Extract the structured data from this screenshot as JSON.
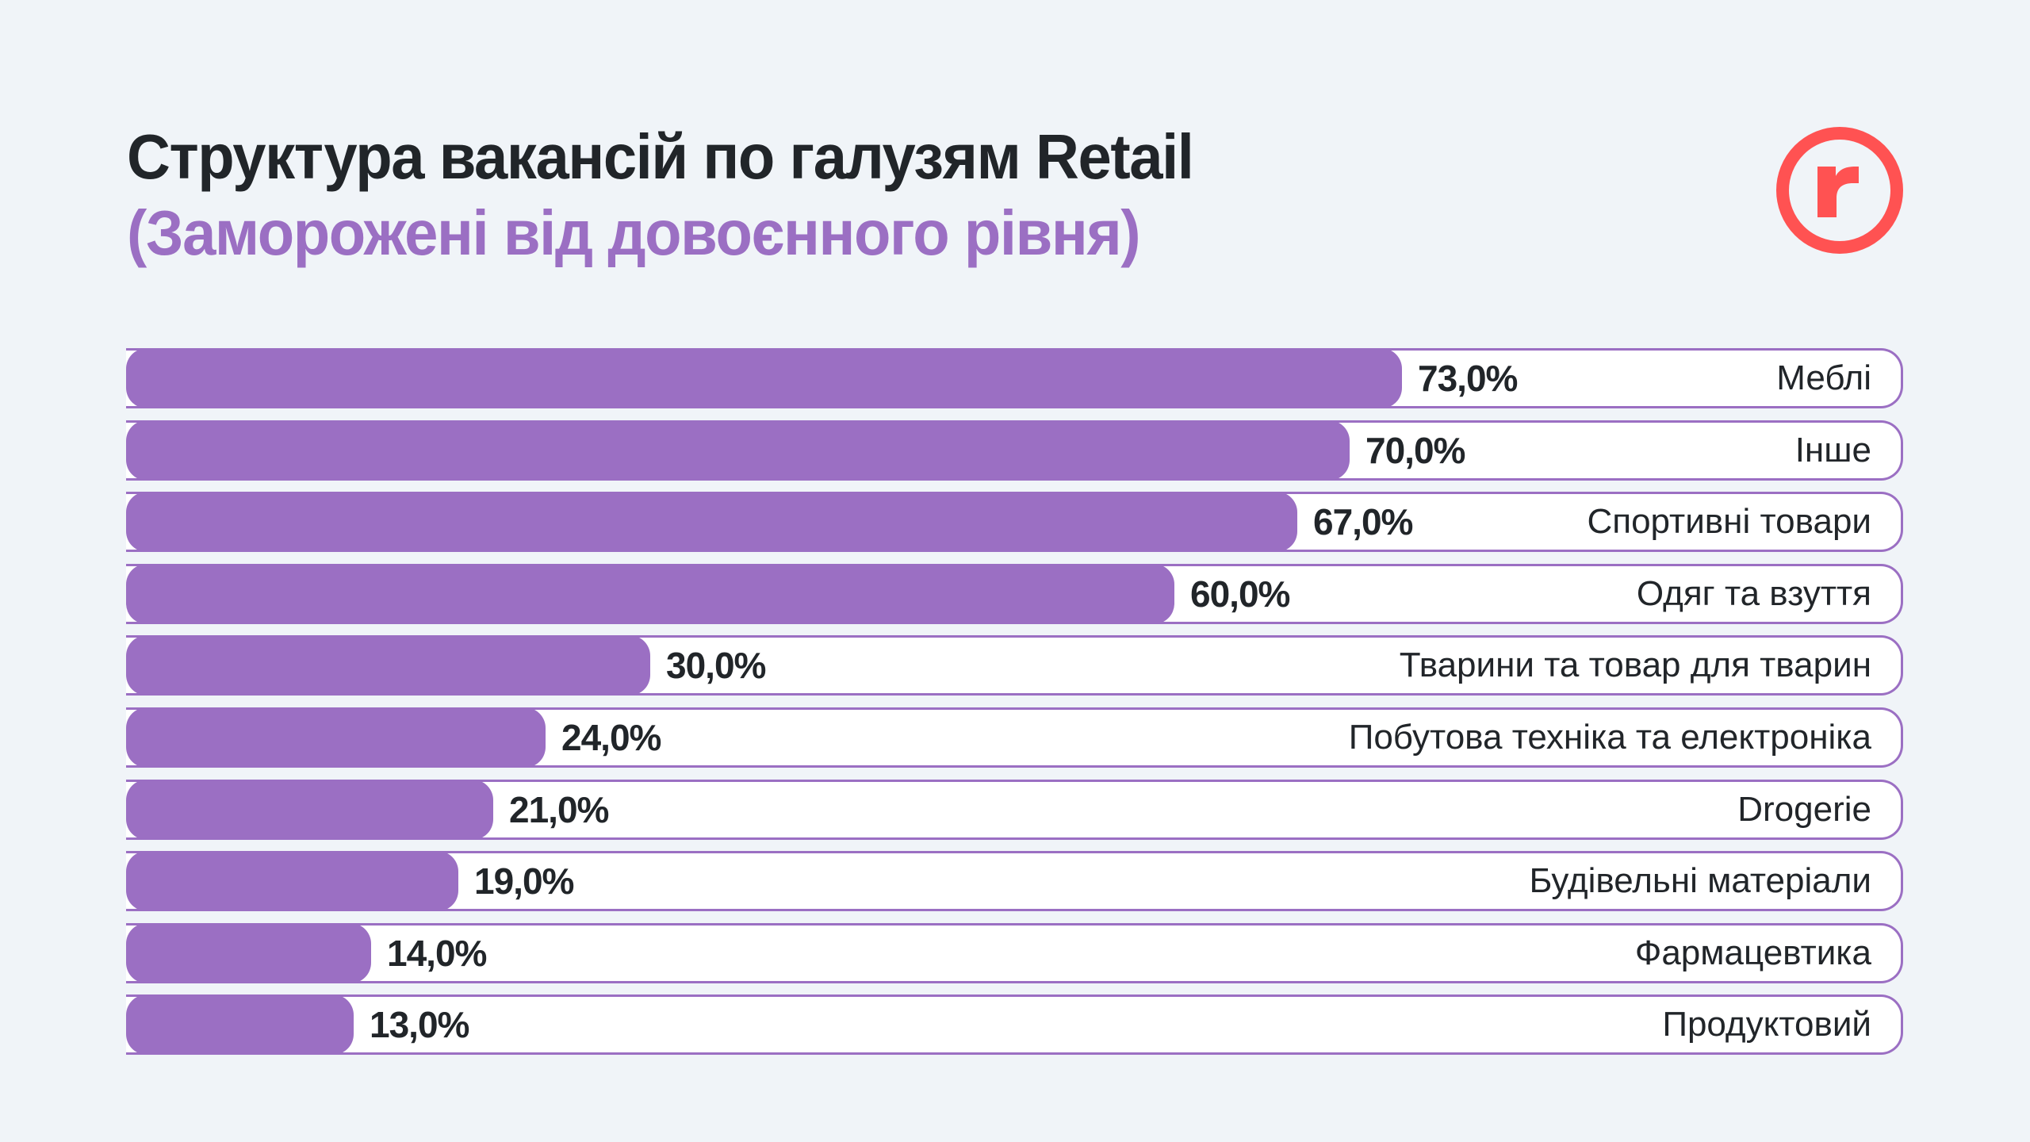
{
  "header": {
    "title": "Структура вакансій по галузям Retail",
    "subtitle": "(Заморожені від довоєнного рівня)"
  },
  "logo": {
    "icon": "r-circle-logo-icon",
    "letter": "r",
    "color": "#ff5252"
  },
  "colors": {
    "bar": "#9b6fc3",
    "track": "#ffffff",
    "text": "#212529",
    "background": "#f0f4f8"
  },
  "chart_data": {
    "type": "bar",
    "orientation": "horizontal",
    "title": "Структура вакансій по галузям Retail",
    "subtitle": "(Заморожені від довоєнного рівня)",
    "xlabel": "",
    "ylabel": "",
    "xlim": [
      0,
      100
    ],
    "grid": false,
    "categories": [
      "Меблі",
      "Інше",
      "Спортивні товари",
      "Одяг та взуття",
      "Тварини та товар для тварин",
      "Побутова техніка та електроніка",
      "Drogerie",
      "Будівельні матеріали",
      "Фармацевтика",
      "Продуктовий"
    ],
    "values": [
      73,
      70,
      67,
      60,
      30,
      24,
      21,
      19,
      14,
      13
    ],
    "value_labels": [
      "73,0%",
      "70,0%",
      "67,0%",
      "60,0%",
      "30,0%",
      "24,0%",
      "21,0%",
      "19,0%",
      "14,0%",
      "13,0%"
    ]
  }
}
